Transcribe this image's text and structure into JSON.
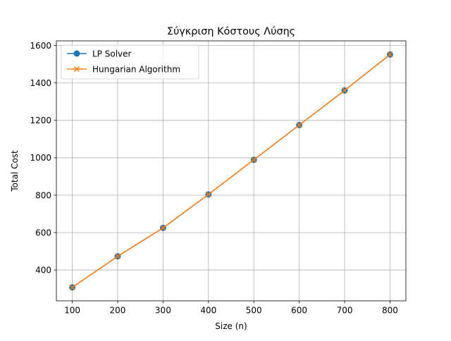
{
  "chart_data": {
    "type": "line",
    "title": "Σύγκριση Κόστους Λύσης",
    "xlabel": "Size (n)",
    "ylabel": "Total Cost",
    "x": [
      100,
      200,
      300,
      400,
      500,
      600,
      700,
      800
    ],
    "xticks": [
      100,
      200,
      300,
      400,
      500,
      600,
      700,
      800
    ],
    "yticks": [
      400,
      600,
      800,
      1000,
      1200,
      1400,
      1600
    ],
    "xlim": [
      65,
      835
    ],
    "ylim": [
      235,
      1625
    ],
    "grid": true,
    "legend_position": "top-left",
    "series": [
      {
        "name": "LP Solver",
        "values": [
          307,
          473,
          625,
          804,
          989,
          1175,
          1360,
          1552
        ],
        "color": "#1f77b4",
        "marker": "circle"
      },
      {
        "name": "Hungarian Algorithm",
        "values": [
          307,
          473,
          625,
          804,
          989,
          1175,
          1360,
          1552
        ],
        "color": "#ff7f0e",
        "marker": "x"
      }
    ]
  }
}
